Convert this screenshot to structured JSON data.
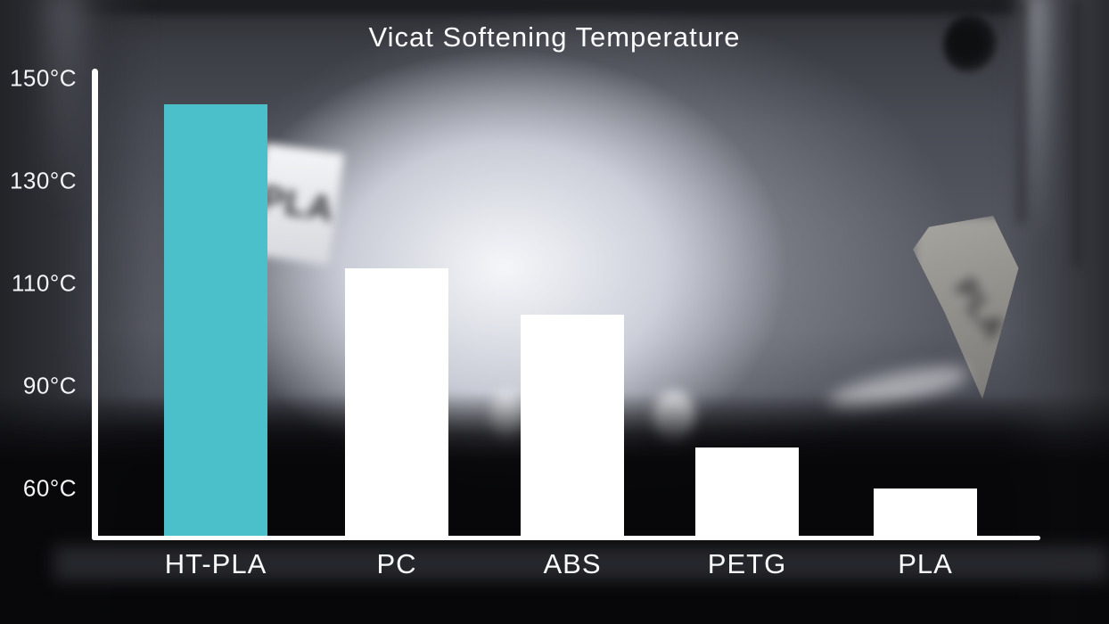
{
  "title": "Vicat Softening Temperature",
  "chart_data": {
    "type": "bar",
    "title": "Vicat Softening Temperature",
    "categories": [
      "HT-PLA",
      "PC",
      "ABS",
      "PETG",
      "PLA"
    ],
    "values": [
      145,
      113,
      104,
      72,
      56
    ],
    "unit": "°C",
    "xlabel": "",
    "ylabel": "",
    "y_tick_labels": [
      "150°C",
      "130°C",
      "110°C",
      "90°C",
      "60°C"
    ],
    "y_tick_values": [
      150,
      130,
      110,
      90,
      60
    ],
    "grid": false,
    "legend": false,
    "bar_colors": [
      "#4CC0CA",
      "#FFFFFF",
      "#FFFFFF",
      "#FFFFFF",
      "#FFFFFF"
    ],
    "highlight_category": "HT-PLA",
    "highlight_color": "#4CC0CA",
    "default_bar_color": "#FFFFFF",
    "axis_color": "#FFFFFF",
    "text_color": "#FFFFFF",
    "note": "y tick spacing is even although values step 20,20,20,30"
  },
  "background": {
    "description": "blurred photo of heated chamber interior with filament spool tags",
    "tags": [
      {
        "label": "PLA",
        "style": "white card tag"
      },
      {
        "label": "PLA",
        "style": "gray pennant flag tag"
      }
    ]
  }
}
